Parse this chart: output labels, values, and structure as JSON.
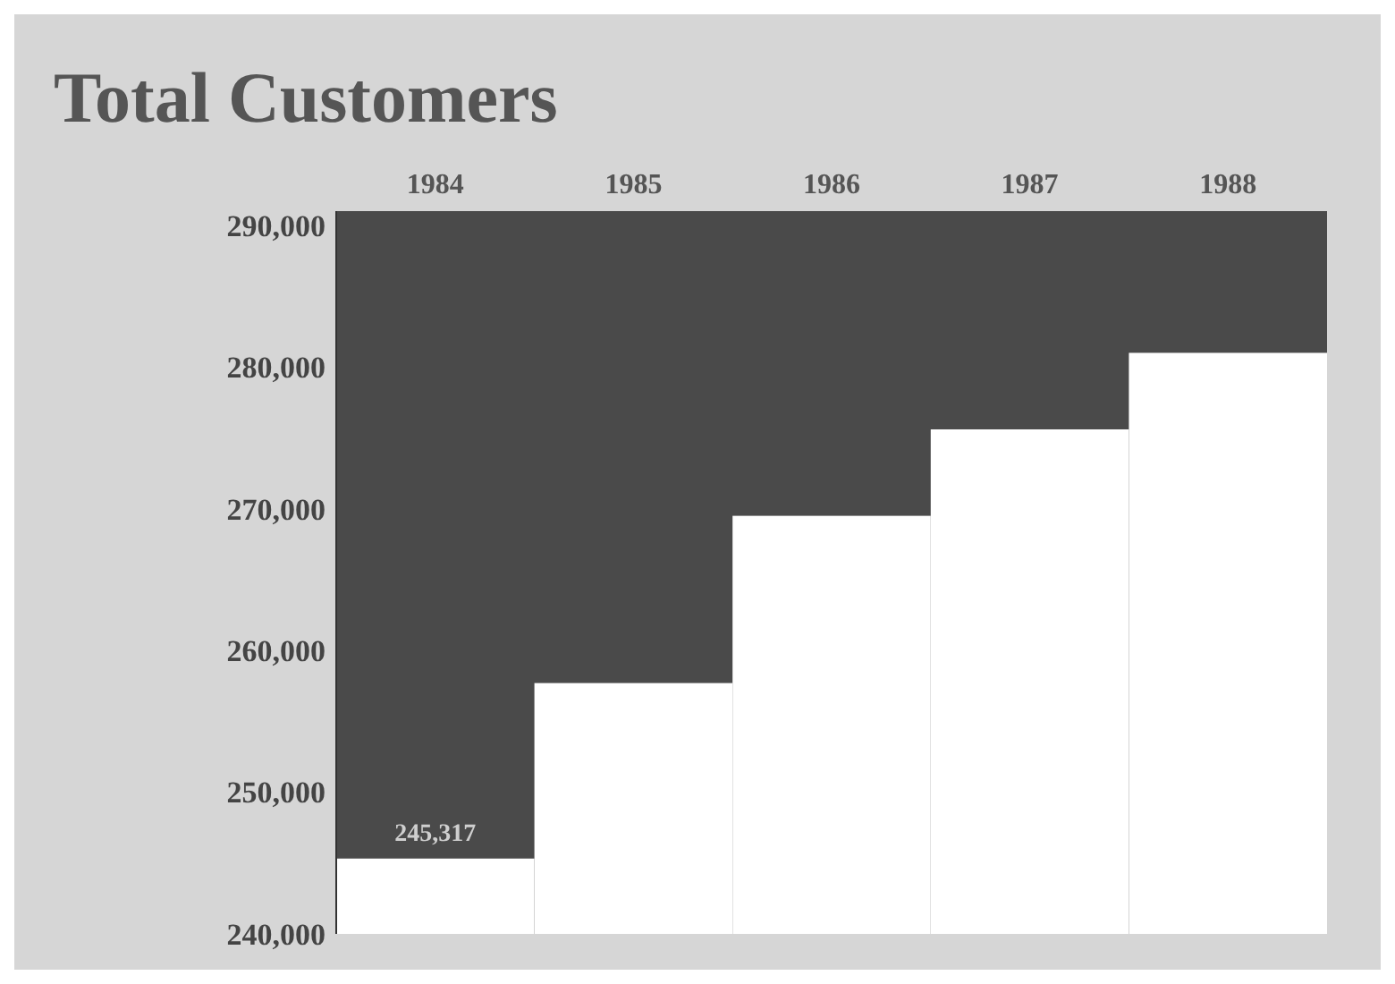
{
  "chart_data": {
    "type": "bar",
    "title": "Total Customers",
    "categories": [
      "1984",
      "1985",
      "1986",
      "1987",
      "1988"
    ],
    "values": [
      245317,
      257700,
      269500,
      275600,
      281000
    ],
    "color": "#ffffff",
    "value_labels": [
      "245,317",
      null,
      null,
      null,
      null
    ],
    "ylim": [
      240000,
      291000
    ],
    "yticks": [
      {
        "value": 240000,
        "label": "240,000"
      },
      {
        "value": 250000,
        "label": "250,000"
      },
      {
        "value": 260000,
        "label": "260,000"
      },
      {
        "value": 270000,
        "label": "270,000"
      },
      {
        "value": 280000,
        "label": "280,000"
      },
      {
        "value": 290000,
        "label": "290,000"
      }
    ],
    "grid": false
  }
}
